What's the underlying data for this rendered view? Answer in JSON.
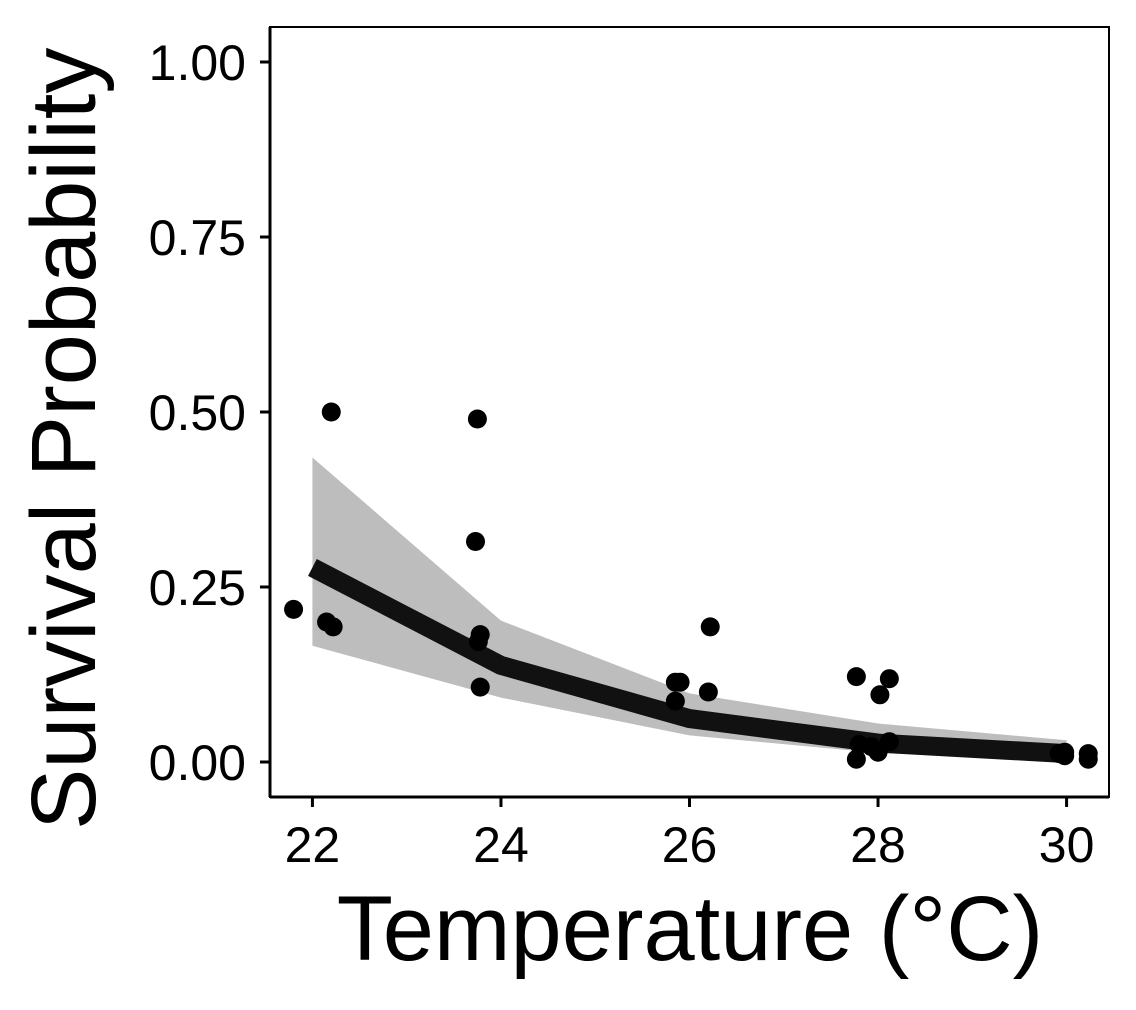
{
  "chart_data": {
    "type": "scatter",
    "title": "",
    "xlabel": "Temperature (°C)",
    "ylabel": "Survival Probability",
    "xlim": [
      21.55,
      30.45
    ],
    "ylim": [
      -0.05,
      1.05
    ],
    "x_ticks": [
      22,
      24,
      26,
      28,
      30
    ],
    "x_tick_labels": [
      "22",
      "24",
      "26",
      "28",
      "30"
    ],
    "y_ticks": [
      0,
      0.25,
      0.5,
      0.75,
      1.0
    ],
    "y_tick_labels": [
      "0.00",
      "0.25",
      "0.50",
      "0.75",
      "1.00"
    ],
    "grid": false,
    "legend": "none",
    "colors": {
      "points": "#000000",
      "fit_line": "#111111",
      "ribbon": "#bdbdbd",
      "axis": "#000000"
    },
    "series": [
      {
        "kind": "points",
        "points": [
          {
            "x": 21.8,
            "y": 0.218
          },
          {
            "x": 22.15,
            "y": 0.2
          },
          {
            "x": 22.22,
            "y": 0.193
          },
          {
            "x": 22.2,
            "y": 0.5
          },
          {
            "x": 23.73,
            "y": 0.315
          },
          {
            "x": 23.75,
            "y": 0.49
          },
          {
            "x": 23.78,
            "y": 0.182
          },
          {
            "x": 23.76,
            "y": 0.172
          },
          {
            "x": 23.78,
            "y": 0.107
          },
          {
            "x": 25.85,
            "y": 0.087
          },
          {
            "x": 25.85,
            "y": 0.114
          },
          {
            "x": 25.9,
            "y": 0.114
          },
          {
            "x": 26.2,
            "y": 0.1
          },
          {
            "x": 26.22,
            "y": 0.193
          },
          {
            "x": 27.77,
            "y": 0.122
          },
          {
            "x": 27.77,
            "y": 0.004
          },
          {
            "x": 27.8,
            "y": 0.025
          },
          {
            "x": 27.93,
            "y": 0.022
          },
          {
            "x": 28.0,
            "y": 0.014
          },
          {
            "x": 28.02,
            "y": 0.096
          },
          {
            "x": 28.12,
            "y": 0.119
          },
          {
            "x": 28.12,
            "y": 0.029
          },
          {
            "x": 29.92,
            "y": 0.012
          },
          {
            "x": 29.98,
            "y": 0.014
          },
          {
            "x": 29.98,
            "y": 0.009
          },
          {
            "x": 30.23,
            "y": 0.012
          },
          {
            "x": 30.23,
            "y": 0.004
          }
        ]
      },
      {
        "kind": "fit",
        "x": [
          22,
          24,
          26,
          28,
          30
        ],
        "y": [
          0.278,
          0.138,
          0.062,
          0.027,
          0.012
        ]
      },
      {
        "kind": "ci_ribbon",
        "x": [
          22,
          24,
          26,
          28,
          30
        ],
        "lower": [
          0.166,
          0.092,
          0.038,
          0.013,
          0.004
        ],
        "upper": [
          0.435,
          0.202,
          0.098,
          0.055,
          0.031
        ]
      }
    ]
  }
}
